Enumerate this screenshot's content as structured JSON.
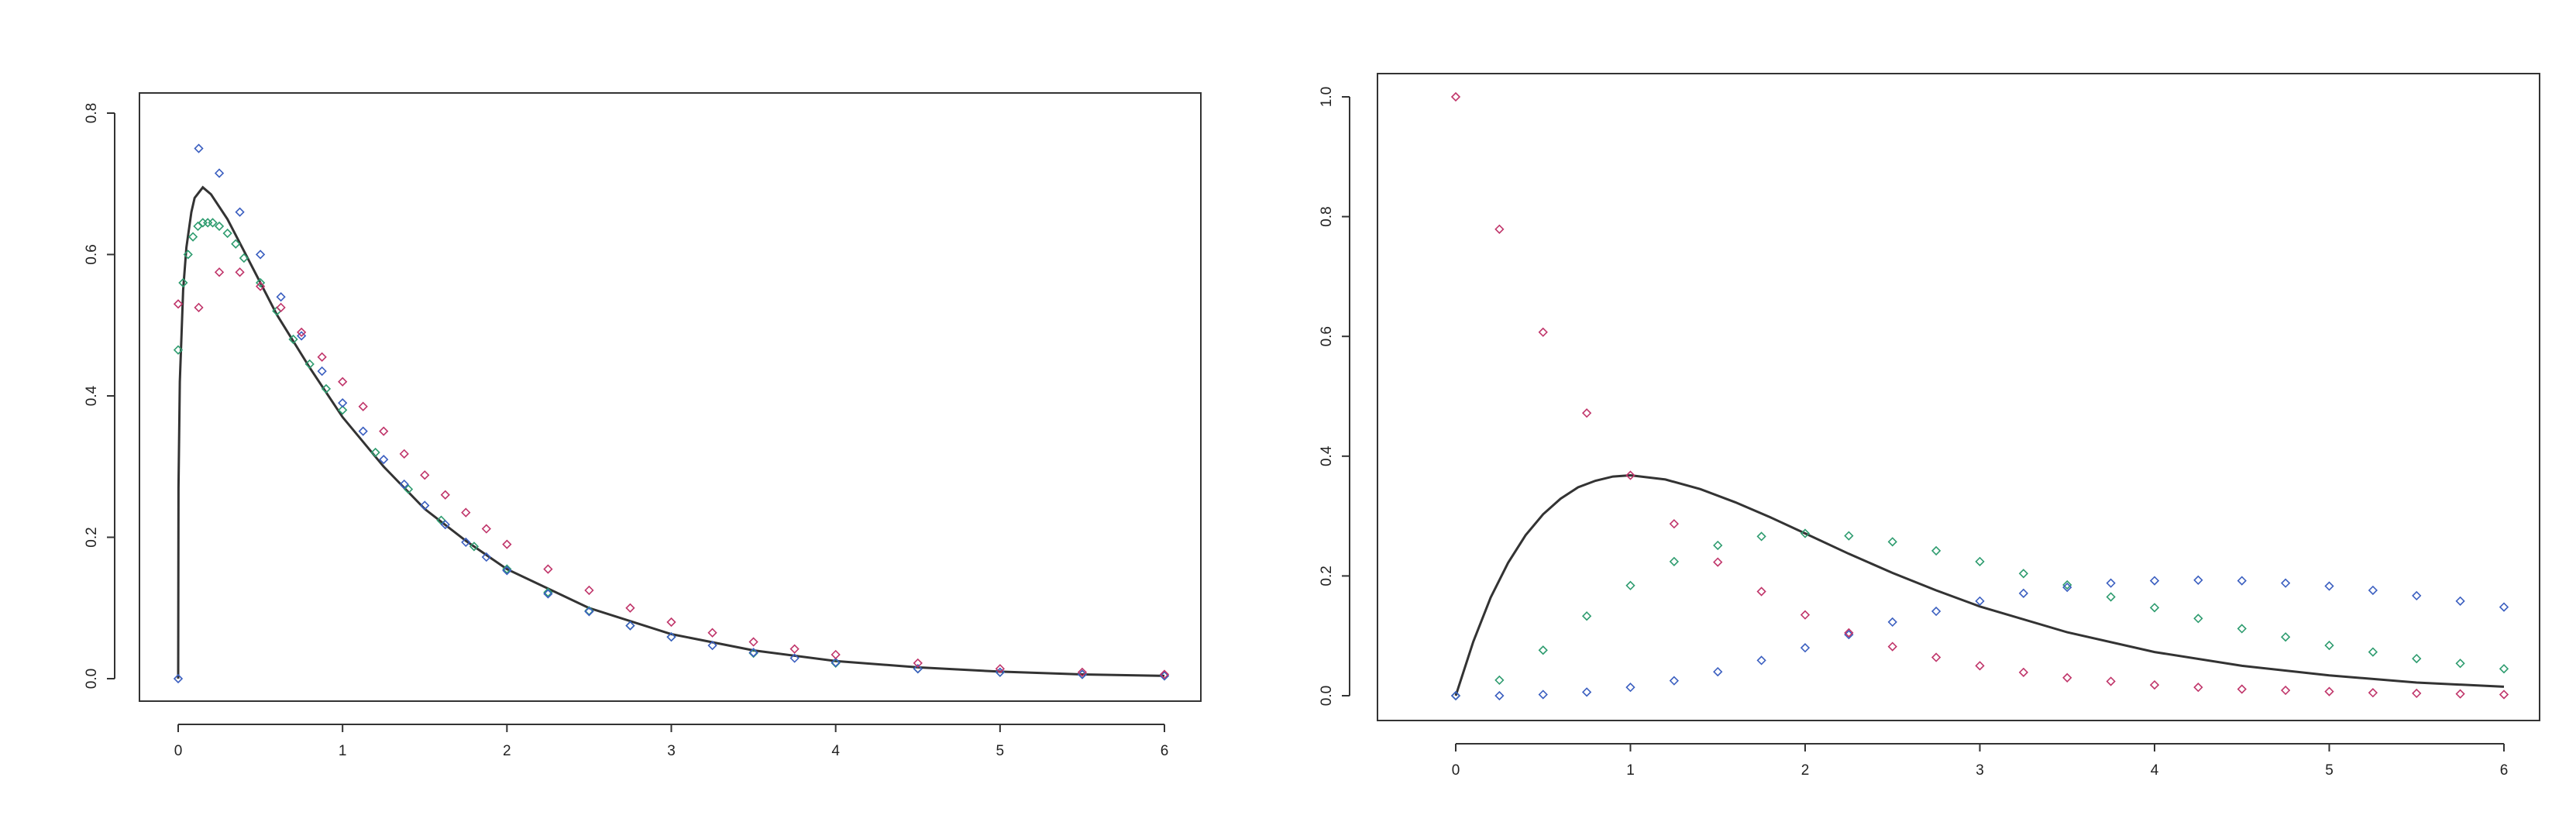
{
  "chart_data": [
    {
      "type": "line",
      "title": "",
      "xlabel": "",
      "ylabel": "",
      "xlim": [
        0,
        6
      ],
      "ylim": [
        0,
        0.8
      ],
      "x_ticks": [
        0,
        1,
        2,
        3,
        4,
        5,
        6
      ],
      "x_tick_labels": [
        "0",
        "1",
        "2",
        "3",
        "4",
        "5",
        "6"
      ],
      "y_ticks": [
        0,
        0.2,
        0.4,
        0.6,
        0.8
      ],
      "y_tick_labels": [
        "0.0",
        "0.2",
        "0.4",
        "0.6",
        "0.8"
      ],
      "grid": false,
      "legend": "none",
      "series": [
        {
          "kind": "line",
          "color": "#333333",
          "x": [
            0,
            0.002,
            0.01,
            0.03,
            0.05,
            0.08,
            0.1,
            0.15,
            0.2,
            0.3,
            0.4,
            0.5,
            0.6,
            0.8,
            1.0,
            1.25,
            1.5,
            1.75,
            2.0,
            2.5,
            3.0,
            3.5,
            4.0,
            4.5,
            5.0,
            5.5,
            6.0
          ],
          "y": [
            0,
            0.27,
            0.42,
            0.55,
            0.61,
            0.66,
            0.68,
            0.695,
            0.685,
            0.65,
            0.605,
            0.56,
            0.515,
            0.44,
            0.37,
            0.3,
            0.24,
            0.195,
            0.155,
            0.1,
            0.063,
            0.04,
            0.025,
            0.016,
            0.01,
            0.006,
            0.004
          ]
        },
        {
          "kind": "points",
          "color": "#2e9c6f",
          "x": [
            0,
            0.03,
            0.06,
            0.09,
            0.12,
            0.15,
            0.18,
            0.21,
            0.25,
            0.3,
            0.35,
            0.4,
            0.5,
            0.6,
            0.7,
            0.8,
            0.9,
            1.0,
            1.2,
            1.4,
            1.6,
            1.8,
            2.0,
            2.25,
            2.5,
            2.75,
            3.0,
            3.5,
            4.0,
            4.5,
            5.0,
            5.5,
            6.0
          ],
          "y": [
            0.465,
            0.56,
            0.6,
            0.625,
            0.64,
            0.645,
            0.645,
            0.645,
            0.64,
            0.63,
            0.615,
            0.595,
            0.56,
            0.52,
            0.48,
            0.445,
            0.41,
            0.38,
            0.32,
            0.268,
            0.224,
            0.187,
            0.155,
            0.122,
            0.096,
            0.075,
            0.059,
            0.036,
            0.022,
            0.014,
            0.009,
            0.006,
            0.004
          ]
        },
        {
          "kind": "points",
          "color": "#3b5fc0",
          "x": [
            0,
            0.125,
            0.25,
            0.375,
            0.5,
            0.625,
            0.75,
            0.875,
            1.0,
            1.125,
            1.25,
            1.375,
            1.5,
            1.625,
            1.75,
            1.875,
            2.0,
            2.25,
            2.5,
            2.75,
            3.0,
            3.25,
            3.5,
            3.75,
            4.0,
            4.5,
            5.0,
            5.5,
            6.0
          ],
          "y": [
            0,
            0.75,
            0.715,
            0.66,
            0.6,
            0.54,
            0.485,
            0.435,
            0.39,
            0.35,
            0.31,
            0.275,
            0.245,
            0.218,
            0.193,
            0.172,
            0.153,
            0.12,
            0.095,
            0.075,
            0.059,
            0.047,
            0.037,
            0.029,
            0.023,
            0.014,
            0.009,
            0.006,
            0.004
          ]
        },
        {
          "kind": "points",
          "color": "#c0356a",
          "x": [
            0,
            0.125,
            0.25,
            0.375,
            0.5,
            0.625,
            0.75,
            0.875,
            1.0,
            1.125,
            1.25,
            1.375,
            1.5,
            1.625,
            1.75,
            1.875,
            2.0,
            2.25,
            2.5,
            2.75,
            3.0,
            3.25,
            3.5,
            3.75,
            4.0,
            4.5,
            5.0,
            5.5,
            6.0
          ],
          "y": [
            0.53,
            0.525,
            0.575,
            0.575,
            0.555,
            0.525,
            0.49,
            0.455,
            0.42,
            0.385,
            0.35,
            0.318,
            0.288,
            0.26,
            0.235,
            0.212,
            0.19,
            0.155,
            0.125,
            0.1,
            0.08,
            0.065,
            0.052,
            0.042,
            0.034,
            0.022,
            0.014,
            0.009,
            0.006
          ]
        }
      ]
    },
    {
      "type": "line",
      "title": "",
      "xlabel": "",
      "ylabel": "",
      "xlim": [
        0,
        6
      ],
      "ylim": [
        0,
        1.0
      ],
      "x_ticks": [
        0,
        1,
        2,
        3,
        4,
        5,
        6
      ],
      "x_tick_labels": [
        "0",
        "1",
        "2",
        "3",
        "4",
        "5",
        "6"
      ],
      "y_ticks": [
        0,
        0.2,
        0.4,
        0.6,
        0.8,
        1.0
      ],
      "y_tick_labels": [
        "0.0",
        "0.2",
        "0.4",
        "0.6",
        "0.8",
        "1.0"
      ],
      "grid": false,
      "legend": "none",
      "series": [
        {
          "kind": "line",
          "color": "#333333",
          "x": [
            0,
            0.1,
            0.2,
            0.3,
            0.4,
            0.5,
            0.6,
            0.7,
            0.8,
            0.9,
            1.0,
            1.2,
            1.4,
            1.6,
            1.8,
            2.0,
            2.25,
            2.5,
            2.75,
            3.0,
            3.5,
            4.0,
            4.5,
            5.0,
            5.5,
            6.0
          ],
          "y": [
            0,
            0.09,
            0.164,
            0.222,
            0.268,
            0.303,
            0.329,
            0.348,
            0.359,
            0.366,
            0.368,
            0.361,
            0.345,
            0.323,
            0.298,
            0.271,
            0.237,
            0.205,
            0.176,
            0.149,
            0.106,
            0.073,
            0.05,
            0.034,
            0.022,
            0.015
          ]
        },
        {
          "kind": "points",
          "color": "#2e9c6f",
          "x": [
            0,
            0.25,
            0.5,
            0.75,
            1.0,
            1.25,
            1.5,
            1.75,
            2.0,
            2.25,
            2.5,
            2.75,
            3.0,
            3.25,
            3.5,
            3.75,
            4.0,
            4.25,
            4.5,
            4.75,
            5.0,
            5.25,
            5.5,
            5.75,
            6.0
          ],
          "y": [
            0,
            0.026,
            0.076,
            0.133,
            0.184,
            0.224,
            0.251,
            0.266,
            0.271,
            0.267,
            0.257,
            0.242,
            0.224,
            0.204,
            0.185,
            0.165,
            0.147,
            0.129,
            0.112,
            0.098,
            0.084,
            0.073,
            0.062,
            0.054,
            0.045
          ]
        },
        {
          "kind": "points",
          "color": "#3b5fc0",
          "x": [
            0,
            0.25,
            0.5,
            0.75,
            1.0,
            1.25,
            1.5,
            1.75,
            2.0,
            2.25,
            2.5,
            2.75,
            3.0,
            3.25,
            3.5,
            3.75,
            4.0,
            4.25,
            4.5,
            4.75,
            5.0,
            5.25,
            5.5,
            5.75,
            6.0
          ],
          "y": [
            0,
            0,
            0.002,
            0.006,
            0.014,
            0.025,
            0.04,
            0.059,
            0.08,
            0.102,
            0.123,
            0.141,
            0.158,
            0.171,
            0.181,
            0.188,
            0.192,
            0.193,
            0.192,
            0.188,
            0.183,
            0.176,
            0.167,
            0.158,
            0.148
          ]
        },
        {
          "kind": "points",
          "color": "#c0356a",
          "x": [
            0,
            0.25,
            0.5,
            0.75,
            1.0,
            1.25,
            1.5,
            1.75,
            2.0,
            2.25,
            2.5,
            2.75,
            3.0,
            3.25,
            3.5,
            3.75,
            4.0,
            4.25,
            4.5,
            4.75,
            5.0,
            5.25,
            5.5,
            5.75,
            6.0
          ],
          "y": [
            1.0,
            0.779,
            0.607,
            0.472,
            0.368,
            0.287,
            0.223,
            0.174,
            0.135,
            0.105,
            0.082,
            0.064,
            0.05,
            0.039,
            0.03,
            0.024,
            0.018,
            0.014,
            0.011,
            0.009,
            0.007,
            0.005,
            0.004,
            0.003,
            0.002
          ]
        }
      ]
    }
  ]
}
